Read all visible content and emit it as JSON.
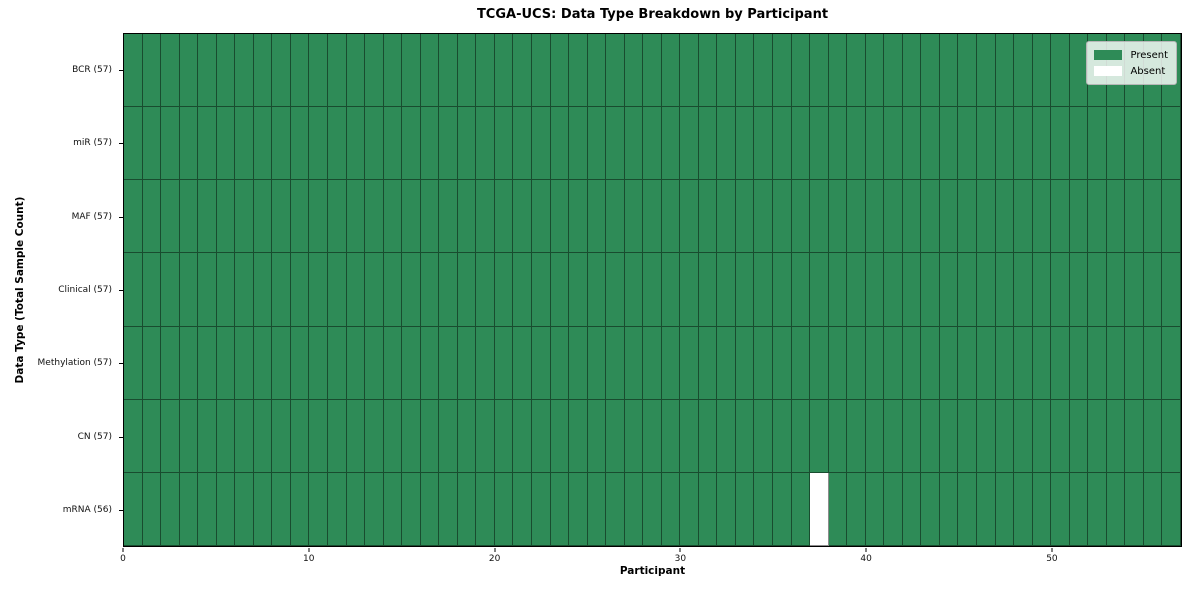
{
  "title": "TCGA-UCS: Data Type Breakdown by Participant",
  "x_axis": {
    "label": "Participant",
    "ticks": [
      0,
      10,
      20,
      30,
      40,
      50
    ],
    "range": [
      0,
      57
    ]
  },
  "y_axis": {
    "label": "Data Type (Total Sample Count)"
  },
  "legend": {
    "items": [
      {
        "label": "Present",
        "color": "#2e8b57"
      },
      {
        "label": "Absent",
        "color": "#ffffff"
      }
    ]
  },
  "colors": {
    "present": "#2e8b57",
    "absent": "#ffffff",
    "cell_border": "rgba(0,0,0,0.45)",
    "frame": "#000000"
  },
  "chart_data": {
    "type": "heatmap",
    "title": "TCGA-UCS: Data Type Breakdown by Participant",
    "xlabel": "Participant",
    "ylabel": "Data Type (Total Sample Count)",
    "x_range": [
      0,
      57
    ],
    "x_ticks": [
      0,
      10,
      20,
      30,
      40,
      50
    ],
    "n_participants": 57,
    "grid": "cell borders on",
    "legend_entries": [
      "Present",
      "Absent"
    ],
    "legend_position": "upper right",
    "values_meaning": "each cell = participant has data of that type (Present) or not (Absent)",
    "rows": [
      {
        "label": "BCR (57)",
        "data_type": "BCR",
        "total_samples": 57,
        "absent_participants": []
      },
      {
        "label": "miR (57)",
        "data_type": "miR",
        "total_samples": 57,
        "absent_participants": []
      },
      {
        "label": "MAF (57)",
        "data_type": "MAF",
        "total_samples": 57,
        "absent_participants": []
      },
      {
        "label": "Clinical (57)",
        "data_type": "Clinical",
        "total_samples": 57,
        "absent_participants": []
      },
      {
        "label": "Methylation (57)",
        "data_type": "Methylation",
        "total_samples": 57,
        "absent_participants": []
      },
      {
        "label": "CN (57)",
        "data_type": "CN",
        "total_samples": 57,
        "absent_participants": []
      },
      {
        "label": "mRNA (56)",
        "data_type": "mRNA",
        "total_samples": 56,
        "absent_participants": [
          37
        ]
      }
    ]
  }
}
